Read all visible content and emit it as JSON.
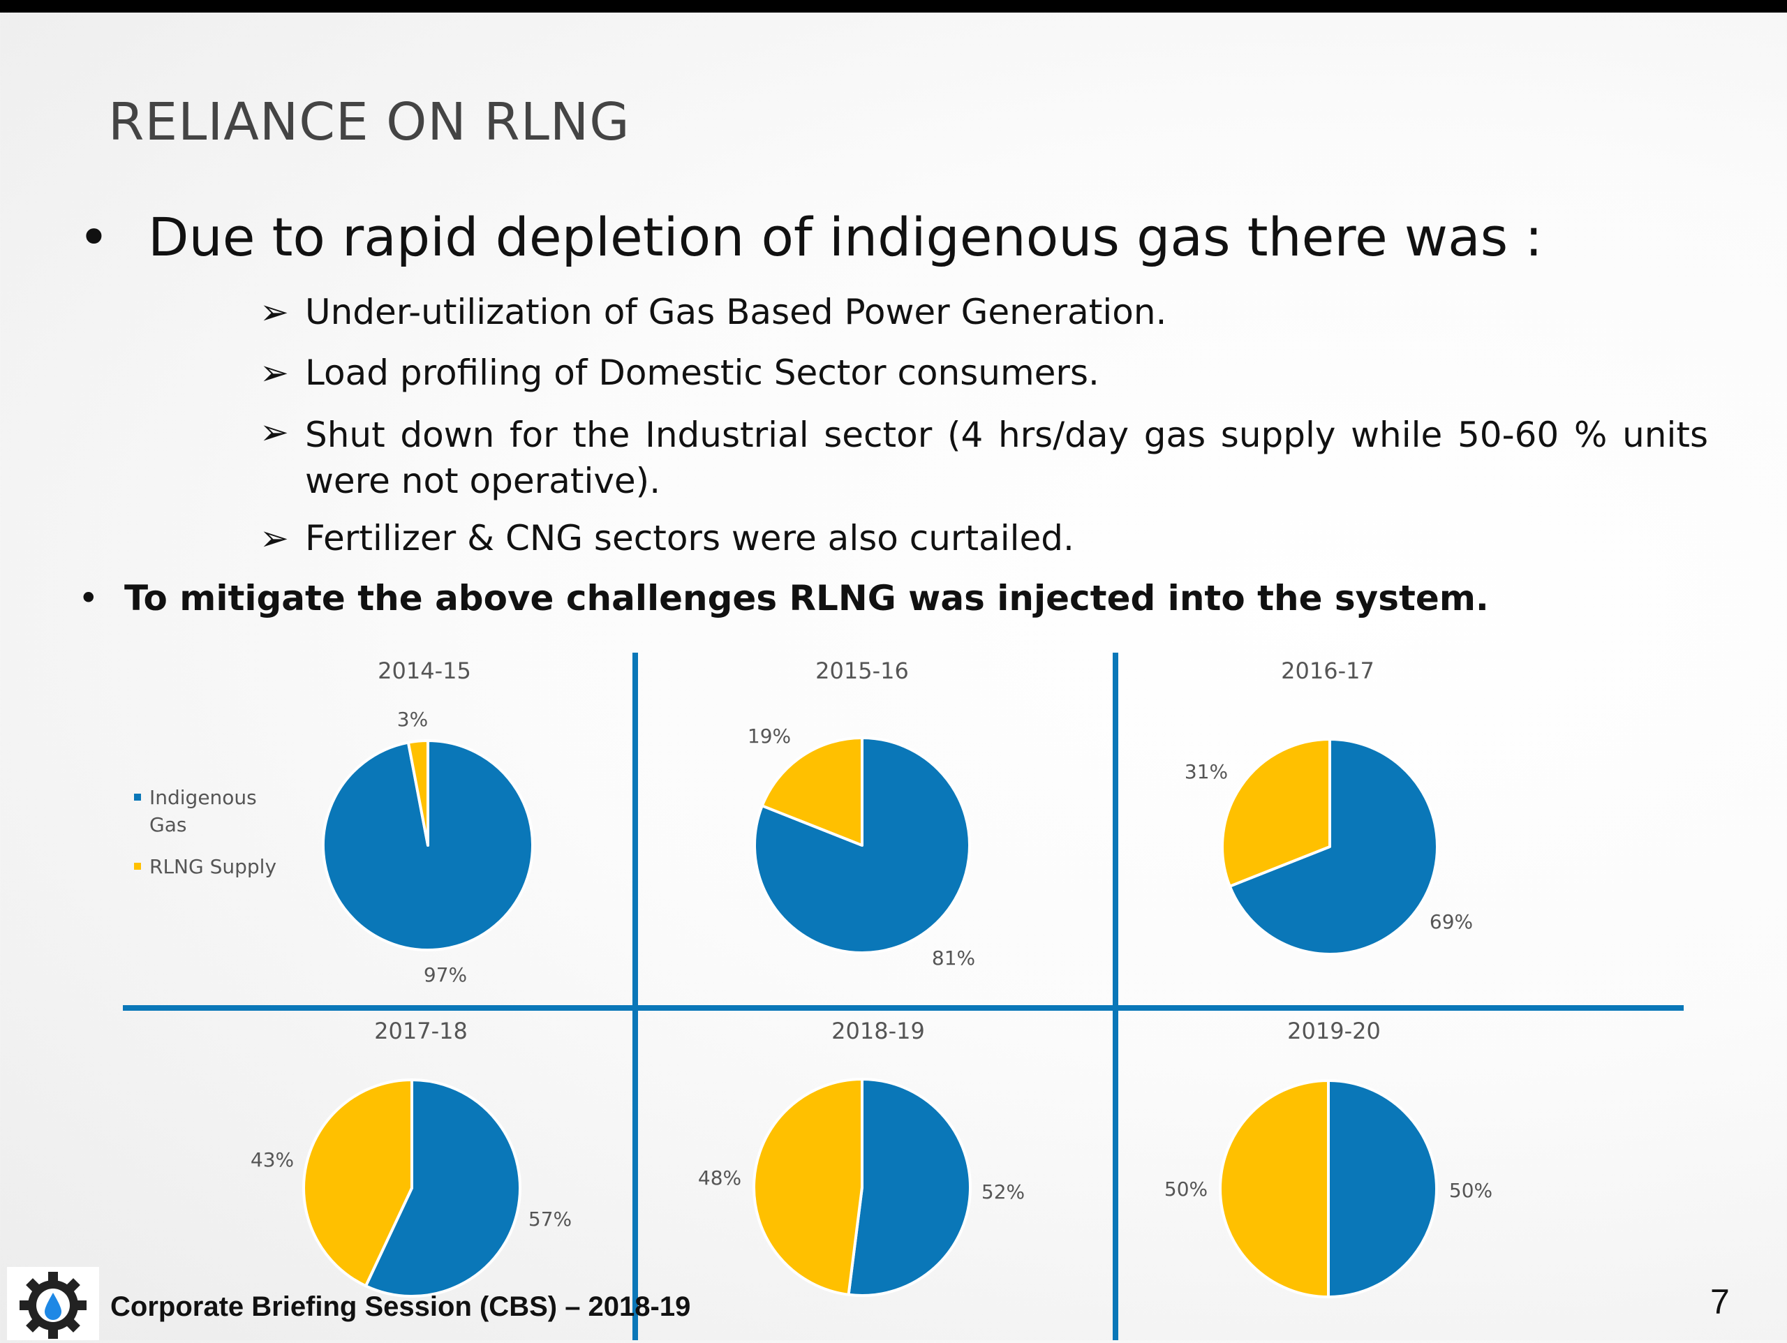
{
  "slide": {
    "title": "RELIANCE ON RLNG",
    "bullet_main": "Due to rapid depletion of indigenous gas there was :",
    "sub_points": [
      "Under-utilization of Gas Based Power Generation.",
      "Load profiling of Domestic Sector consumers.",
      "Shut down for the Industrial sector (4 hrs/day gas supply while 50-60 % units were not operative).",
      "Fertilizer & CNG sectors were also curtailed."
    ],
    "bullet_second": "To mitigate the above challenges RLNG was injected into the system.",
    "bullet_glyph": "•",
    "arrow_glyph": "➢",
    "footer": "Corporate Briefing Session (CBS) – 2018-19",
    "page_number": "7"
  },
  "colors": {
    "indigenous": "#0A77B8",
    "rlng": "#FFC000",
    "divider": "#0A77B8"
  },
  "legend": [
    {
      "label_line1": "Indigenous",
      "label_line2": "Gas",
      "color": "#0A77B8"
    },
    {
      "label_line1": "RLNG Supply",
      "label_line2": "",
      "color": "#FFC000"
    }
  ],
  "chart_data": [
    {
      "type": "pie",
      "title": "2014-15",
      "categories": [
        "Indigenous Gas",
        "RLNG Supply"
      ],
      "values": [
        97,
        3
      ],
      "labels": [
        "97%",
        "3%"
      ]
    },
    {
      "type": "pie",
      "title": "2015-16",
      "categories": [
        "Indigenous Gas",
        "RLNG Supply"
      ],
      "values": [
        81,
        19
      ],
      "labels": [
        "81%",
        "19%"
      ]
    },
    {
      "type": "pie",
      "title": "2016-17",
      "categories": [
        "Indigenous Gas",
        "RLNG Supply"
      ],
      "values": [
        69,
        31
      ],
      "labels": [
        "69%",
        "31%"
      ]
    },
    {
      "type": "pie",
      "title": "2017-18",
      "categories": [
        "Indigenous Gas",
        "RLNG Supply"
      ],
      "values": [
        57,
        43
      ],
      "labels": [
        "57%",
        "43%"
      ]
    },
    {
      "type": "pie",
      "title": "2018-19",
      "categories": [
        "Indigenous Gas",
        "RLNG Supply"
      ],
      "values": [
        52,
        48
      ],
      "labels": [
        "52%",
        "48%"
      ]
    },
    {
      "type": "pie",
      "title": "2019-20",
      "categories": [
        "Indigenous Gas",
        "RLNG Supply"
      ],
      "values": [
        50,
        50
      ],
      "labels": [
        "50%",
        "50%"
      ]
    }
  ]
}
